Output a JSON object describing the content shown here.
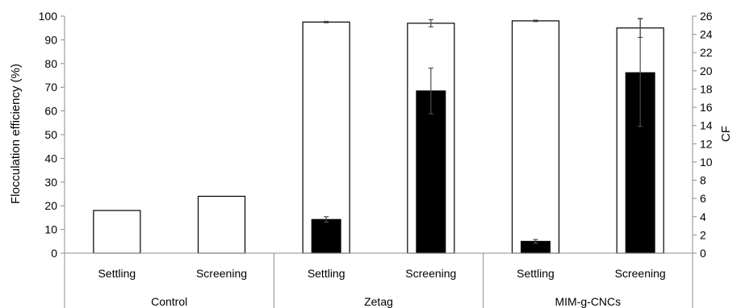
{
  "chart_data": {
    "type": "bar",
    "categories": [
      "Settling",
      "Screening",
      "Settling",
      "Screening",
      "Settling",
      "Screening"
    ],
    "groups": [
      {
        "label": "Control",
        "categories": [
          "Settling",
          "Screening"
        ]
      },
      {
        "label": "Zetag",
        "categories": [
          "Settling",
          "Screening"
        ]
      },
      {
        "label": "MIM-g-CNCs",
        "categories": [
          "Settling",
          "Screening"
        ]
      }
    ],
    "series": [
      {
        "axis": "left",
        "fill": "#ffffff",
        "values": [
          18,
          24,
          97.5,
          97,
          98,
          95
        ],
        "errors": [
          0,
          0,
          0.3,
          1.5,
          0.3,
          4
        ]
      },
      {
        "axis": "right",
        "fill": "#000000",
        "values": [
          null,
          null,
          3.7,
          17.8,
          1.3,
          19.8
        ],
        "errors": [
          null,
          null,
          0.3,
          2.5,
          0.2,
          5.9
        ]
      }
    ],
    "ylabel": "Flocculation efficiency (%)",
    "y2label": "CF",
    "ylim": [
      0,
      100
    ],
    "yticks": [
      0,
      10,
      20,
      30,
      40,
      50,
      60,
      70,
      80,
      90,
      100
    ],
    "y2lim": [
      0,
      26
    ],
    "y2ticks": [
      0,
      2,
      4,
      6,
      8,
      10,
      12,
      14,
      16,
      18,
      20,
      22,
      24,
      26
    ],
    "grid": false,
    "colors": {
      "axis": "#8c8c8c",
      "bar_edge": "#000000",
      "error_bar": "#4d4d4d"
    }
  }
}
